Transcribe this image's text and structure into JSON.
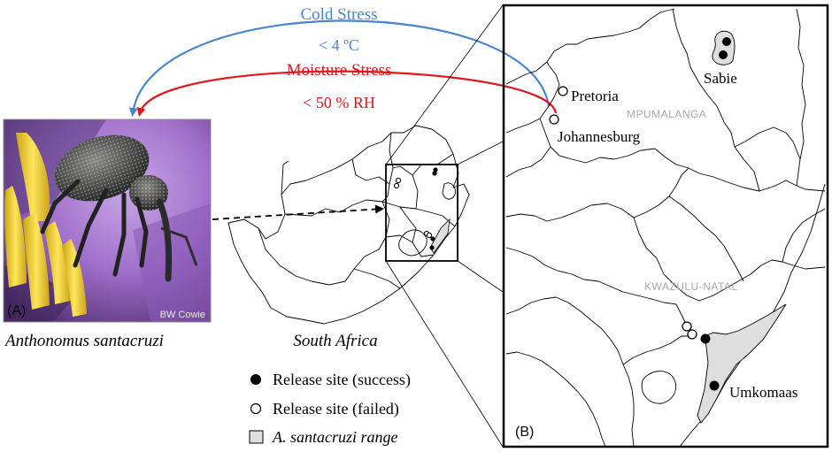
{
  "stress": {
    "cold": {
      "title": "Cold Stress",
      "threshold": "< 4 ºC",
      "color": "#4a86d0"
    },
    "moisture": {
      "title": "Moisture Stress",
      "threshold": "< 50 % RH",
      "color": "#e0161b"
    }
  },
  "photo": {
    "panel_label": "(A)",
    "credit": "BW Cowie",
    "species": "Anthonomus santacruzi"
  },
  "overview_map": {
    "country": "South Africa"
  },
  "legend": {
    "success": "Release site (success)",
    "failed": "Release site (failed)",
    "range": "A. santacruzi range"
  },
  "detail_map": {
    "panel_label": "(B)",
    "cities": {
      "pretoria": "Pretoria",
      "johannesburg": "Johannesburg",
      "sabie": "Sabie",
      "umkomaas": "Umkomaas"
    },
    "provinces": {
      "mpumalanga": "MPUMALANGA",
      "kwazulu_natal": "KWAZULU-NATAL"
    }
  },
  "colors": {
    "range_fill": "#dedede",
    "border": "#000000",
    "province_label": "#a9a9a9"
  }
}
